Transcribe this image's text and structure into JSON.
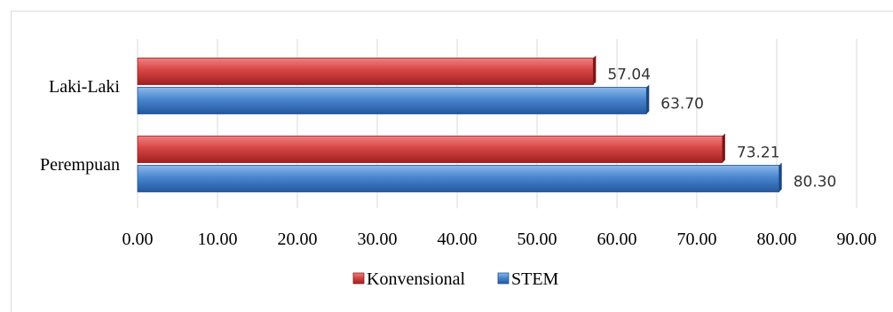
{
  "chart_data": {
    "type": "bar",
    "orientation": "horizontal",
    "categories": [
      "Laki-Laki",
      "Perempuan"
    ],
    "series": [
      {
        "name": "Konvensional",
        "values": [
          57.04,
          73.21
        ],
        "color": "#c0392b"
      },
      {
        "name": "STEM",
        "values": [
          63.7,
          80.3
        ],
        "color": "#3c78c3"
      }
    ],
    "data_labels": [
      [
        "57.04",
        "73.21"
      ],
      [
        "63.70",
        "80.30"
      ]
    ],
    "xlim": [
      0,
      90
    ],
    "x_ticks": [
      "0.00",
      "10.00",
      "20.00",
      "30.00",
      "40.00",
      "50.00",
      "60.00",
      "70.00",
      "80.00",
      "90.00"
    ],
    "grid": "vertical",
    "legend_position": "bottom",
    "title": "",
    "xlabel": "",
    "ylabel": ""
  }
}
